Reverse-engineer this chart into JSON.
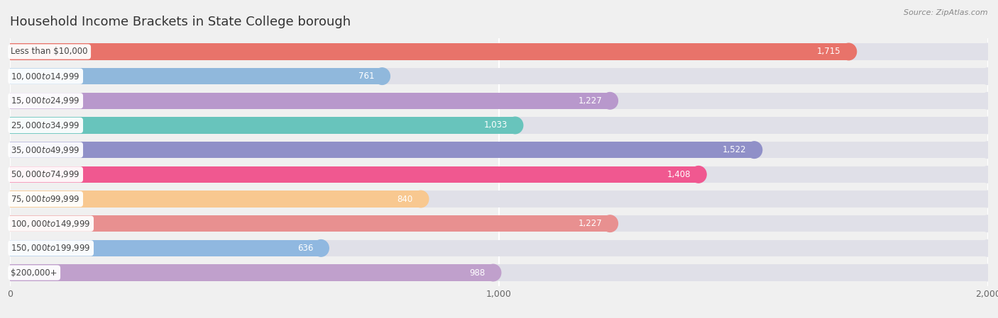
{
  "title": "Household Income Brackets in State College borough",
  "source": "Source: ZipAtlas.com",
  "categories": [
    "Less than $10,000",
    "$10,000 to $14,999",
    "$15,000 to $24,999",
    "$25,000 to $34,999",
    "$35,000 to $49,999",
    "$50,000 to $74,999",
    "$75,000 to $99,999",
    "$100,000 to $149,999",
    "$150,000 to $199,999",
    "$200,000+"
  ],
  "values": [
    1715,
    761,
    1227,
    1033,
    1522,
    1408,
    840,
    1227,
    636,
    988
  ],
  "bar_colors": [
    "#E8736A",
    "#90B8DC",
    "#B898CC",
    "#68C4BC",
    "#9090C8",
    "#F05890",
    "#F8C890",
    "#E89090",
    "#90B8E0",
    "#C0A0CC"
  ],
  "background_color": "#f0f0f0",
  "bar_background_color": "#e0e0e8",
  "xlim": [
    0,
    2000
  ],
  "xticks": [
    0,
    1000,
    2000
  ],
  "title_fontsize": 13,
  "label_fontsize": 8.5,
  "value_fontsize": 8.5
}
